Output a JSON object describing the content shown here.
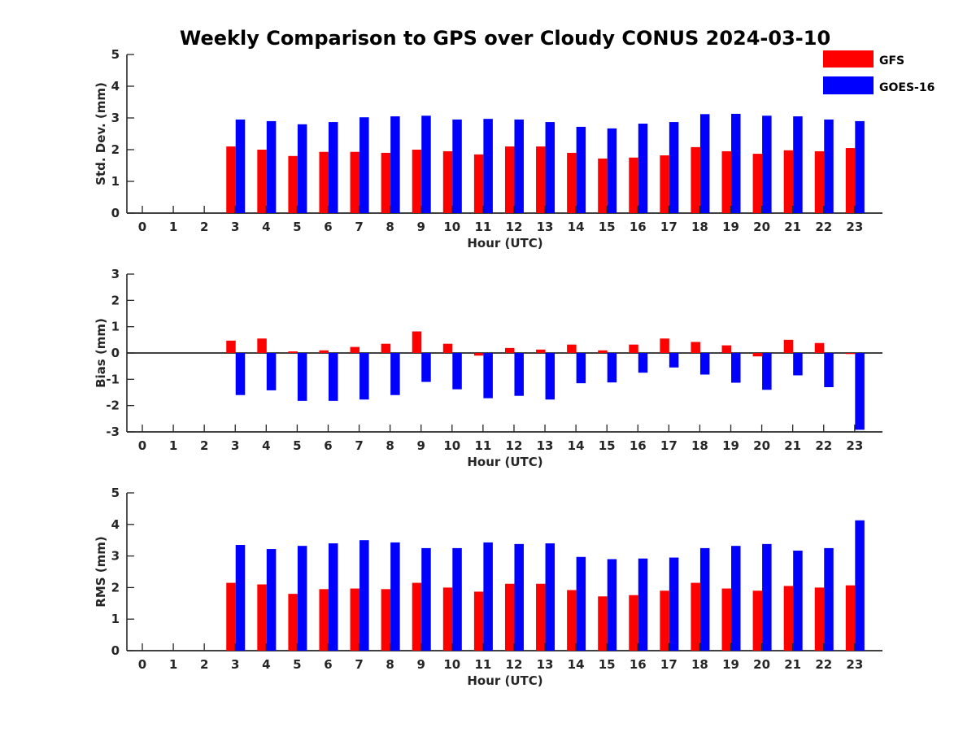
{
  "title": "Weekly Comparison to GPS over Cloudy CONUS 2024-03-10",
  "legend": [
    {
      "name": "GFS",
      "color": "#ff0000"
    },
    {
      "name": "GOES-16",
      "color": "#0000ff"
    }
  ],
  "chart_data": [
    {
      "type": "bar",
      "xlabel": "Hour (UTC)",
      "ylabel": "Std. Dev. (mm)",
      "ylim": [
        0,
        5
      ],
      "yticks": [
        0,
        1,
        2,
        3,
        4,
        5
      ],
      "categories": [
        "0",
        "1",
        "2",
        "3",
        "4",
        "5",
        "6",
        "7",
        "8",
        "9",
        "10",
        "11",
        "12",
        "13",
        "14",
        "15",
        "16",
        "17",
        "18",
        "19",
        "20",
        "21",
        "22",
        "23"
      ],
      "series": [
        {
          "name": "GFS",
          "color": "#ff0000",
          "values": [
            null,
            null,
            null,
            2.1,
            2.0,
            1.8,
            1.93,
            1.93,
            1.9,
            2.0,
            1.95,
            1.85,
            2.1,
            2.1,
            1.9,
            1.72,
            1.75,
            1.82,
            2.08,
            1.95,
            1.87,
            1.98,
            1.95,
            2.05
          ]
        },
        {
          "name": "GOES-16",
          "color": "#0000ff",
          "values": [
            null,
            null,
            null,
            2.95,
            2.9,
            2.8,
            2.87,
            3.02,
            3.05,
            3.07,
            2.95,
            2.97,
            2.95,
            2.87,
            2.72,
            2.67,
            2.82,
            2.87,
            3.12,
            3.13,
            3.07,
            3.05,
            2.95,
            2.9
          ]
        }
      ]
    },
    {
      "type": "bar",
      "xlabel": "Hour (UTC)",
      "ylabel": "Bias (mm)",
      "ylim": [
        -3,
        3
      ],
      "yticks": [
        -3,
        -2,
        -1,
        0,
        1,
        2,
        3
      ],
      "categories": [
        "0",
        "1",
        "2",
        "3",
        "4",
        "5",
        "6",
        "7",
        "8",
        "9",
        "10",
        "11",
        "12",
        "13",
        "14",
        "15",
        "16",
        "17",
        "18",
        "19",
        "20",
        "21",
        "22",
        "23"
      ],
      "series": [
        {
          "name": "GFS",
          "color": "#ff0000",
          "values": [
            null,
            null,
            null,
            0.47,
            0.55,
            0.06,
            0.1,
            0.23,
            0.35,
            0.82,
            0.35,
            -0.1,
            0.19,
            0.13,
            0.32,
            0.1,
            0.32,
            0.55,
            0.42,
            0.29,
            -0.13,
            0.5,
            0.38,
            -0.04
          ]
        },
        {
          "name": "GOES-16",
          "color": "#0000ff",
          "values": [
            null,
            null,
            null,
            -1.6,
            -1.42,
            -1.82,
            -1.82,
            -1.77,
            -1.6,
            -1.1,
            -1.38,
            -1.72,
            -1.63,
            -1.77,
            -1.15,
            -1.12,
            -0.75,
            -0.55,
            -0.82,
            -1.13,
            -1.4,
            -0.85,
            -1.3,
            -2.92
          ]
        }
      ]
    },
    {
      "type": "bar",
      "xlabel": "Hour (UTC)",
      "ylabel": "RMS (mm)",
      "ylim": [
        0,
        5
      ],
      "yticks": [
        0,
        1,
        2,
        3,
        4,
        5
      ],
      "categories": [
        "0",
        "1",
        "2",
        "3",
        "4",
        "5",
        "6",
        "7",
        "8",
        "9",
        "10",
        "11",
        "12",
        "13",
        "14",
        "15",
        "16",
        "17",
        "18",
        "19",
        "20",
        "21",
        "22",
        "23"
      ],
      "series": [
        {
          "name": "GFS",
          "color": "#ff0000",
          "values": [
            null,
            null,
            null,
            2.15,
            2.1,
            1.8,
            1.95,
            1.97,
            1.95,
            2.15,
            2.0,
            1.87,
            2.12,
            2.12,
            1.92,
            1.72,
            1.76,
            1.9,
            2.15,
            1.97,
            1.9,
            2.05,
            2.0,
            2.07
          ]
        },
        {
          "name": "GOES-16",
          "color": "#0000ff",
          "values": [
            null,
            null,
            null,
            3.35,
            3.22,
            3.32,
            3.4,
            3.5,
            3.43,
            3.25,
            3.25,
            3.43,
            3.38,
            3.4,
            2.97,
            2.9,
            2.92,
            2.95,
            3.25,
            3.32,
            3.38,
            3.17,
            3.25,
            4.13
          ]
        }
      ]
    }
  ]
}
